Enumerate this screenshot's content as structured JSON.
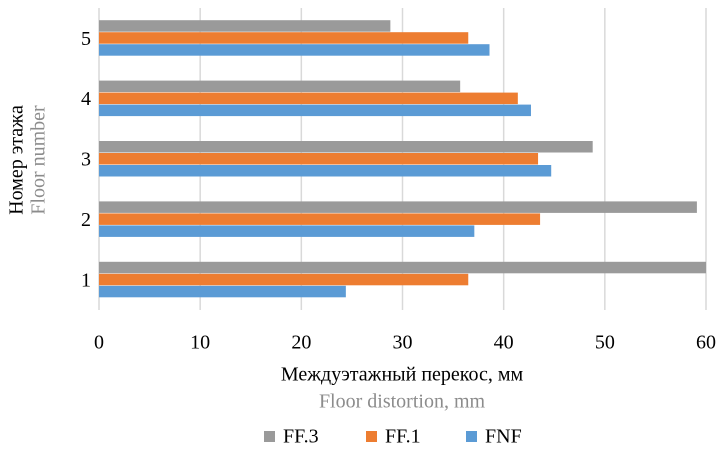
{
  "chart_data": {
    "type": "bar",
    "orientation": "horizontal",
    "categories": [
      "1",
      "2",
      "3",
      "4",
      "5"
    ],
    "series": [
      {
        "name": "FF.3",
        "color": "#9a9a9a",
        "values": [
          60,
          59.1,
          48.8,
          35.7,
          28.8
        ]
      },
      {
        "name": "FF.1",
        "color": "#ed7d31",
        "values": [
          36.5,
          43.6,
          43.4,
          41.4,
          36.5
        ]
      },
      {
        "name": "FNF",
        "color": "#5b9bd5",
        "values": [
          24.4,
          37.1,
          44.7,
          42.7,
          38.6
        ]
      }
    ],
    "xlim": [
      0,
      60
    ],
    "xticks": [
      0,
      10,
      20,
      30,
      40,
      50,
      60
    ],
    "xlabel": [
      "Междуэтажный перекос, мм",
      "Floor distortion, mm"
    ],
    "ylabel": [
      "Номер этажа",
      "Floor number"
    ],
    "grid": true,
    "legend": "bottom"
  }
}
